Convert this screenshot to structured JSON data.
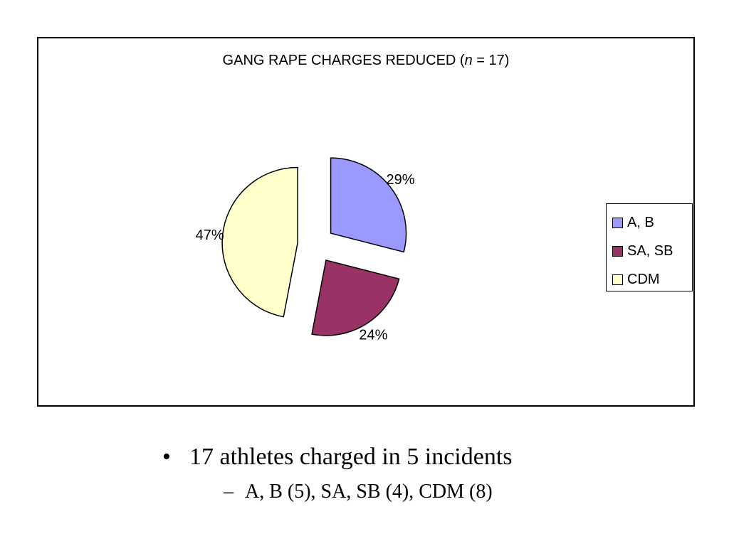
{
  "chart_data": {
    "type": "pie",
    "title_main": "GANG RAPE CHARGES REDUCED (",
    "title_var": "n",
    "title_rest": " = 17)",
    "slices": [
      {
        "label": "A, B",
        "value": 29,
        "display": "29%",
        "color": "#9999FF"
      },
      {
        "label": "SA, SB",
        "value": 24,
        "display": "24%",
        "color": "#993366"
      },
      {
        "label": "CDM",
        "value": 47,
        "display": "47%",
        "color": "#FFFFCC"
      }
    ],
    "legend_position": "right",
    "exploded": true
  },
  "bullets": {
    "marker": "•",
    "main": "17 athletes charged in 5 incidents",
    "sub_marker": "–",
    "sub": "A, B (5), SA, SB (4), CDM (8)"
  }
}
